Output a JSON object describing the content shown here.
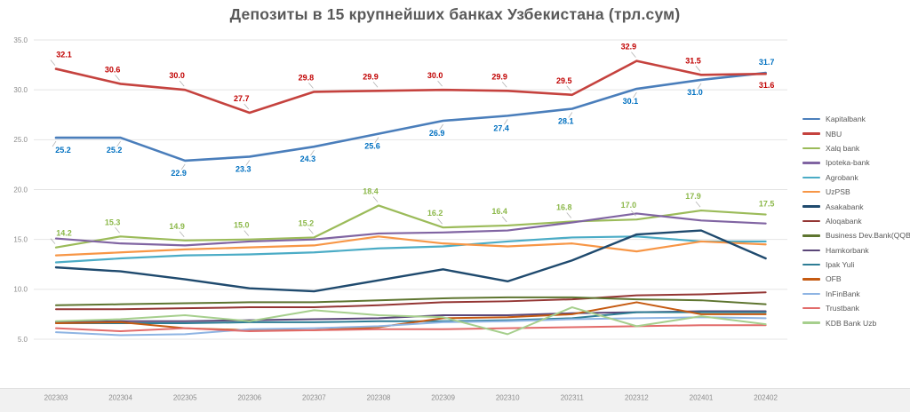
{
  "title": "Депозиты в 15 крупнейших банках Узбекистана (трл.сум)",
  "chart_data": {
    "type": "line",
    "x": [
      "202303",
      "202304",
      "202305",
      "202306",
      "202307",
      "202308",
      "202309",
      "202310",
      "202311",
      "202312",
      "202401",
      "202402"
    ],
    "ylim": [
      5,
      35
    ],
    "yticks": [
      5,
      10,
      15,
      20,
      25,
      30,
      35
    ],
    "grid": true,
    "legend_position": "right",
    "axis_text_color": "#8c8c8c",
    "grid_color": "#e4e4e4",
    "title_color": "#595959",
    "series": [
      {
        "name": "Kapitalbank",
        "color": "#4a7ebb",
        "label_color": "#0070c0",
        "width": 2.6,
        "data_labels": "below",
        "last_label": "above",
        "values": [
          25.2,
          25.2,
          22.9,
          23.3,
          24.3,
          25.6,
          26.9,
          27.4,
          28.1,
          30.1,
          31.0,
          31.7
        ]
      },
      {
        "name": "NBU",
        "color": "#c5423e",
        "label_color": "#c00000",
        "width": 2.6,
        "data_labels": "above",
        "last_label": "below",
        "values": [
          32.1,
          30.6,
          30.0,
          27.7,
          29.8,
          29.9,
          30.0,
          29.9,
          29.5,
          32.9,
          31.5,
          31.6
        ]
      },
      {
        "name": "Xalq bank",
        "color": "#9bbb59",
        "label_color": "#8cb84a",
        "width": 2.2,
        "data_labels": "above",
        "last_label": "above",
        "values": [
          14.2,
          15.3,
          14.9,
          15.0,
          15.2,
          18.4,
          16.2,
          16.4,
          16.8,
          17.0,
          17.9,
          17.5
        ]
      },
      {
        "name": "Ipoteka-bank",
        "color": "#8064a2",
        "width": 2.2,
        "data_labels": "none",
        "values": [
          15.1,
          14.6,
          14.4,
          14.8,
          15.0,
          15.6,
          15.7,
          15.9,
          16.7,
          17.6,
          16.9,
          16.6
        ]
      },
      {
        "name": "Agrobank",
        "color": "#4bacc6",
        "width": 2.2,
        "data_labels": "none",
        "values": [
          12.7,
          13.1,
          13.4,
          13.5,
          13.7,
          14.1,
          14.3,
          14.8,
          15.2,
          15.3,
          14.8,
          14.8
        ]
      },
      {
        "name": "UzPSB",
        "color": "#f79646",
        "width": 2.2,
        "data_labels": "none",
        "values": [
          13.4,
          13.7,
          14.0,
          14.2,
          14.4,
          15.3,
          14.6,
          14.3,
          14.6,
          13.8,
          14.8,
          14.5
        ]
      },
      {
        "name": "Asakabank",
        "color": "#1f4a6e",
        "width": 2.4,
        "data_labels": "none",
        "values": [
          12.2,
          11.8,
          11.0,
          10.1,
          9.8,
          10.9,
          12.0,
          10.8,
          12.9,
          15.5,
          15.9,
          13.1
        ]
      },
      {
        "name": "Aloqabank",
        "color": "#943634",
        "width": 2.0,
        "data_labels": "none",
        "values": [
          8.0,
          8.0,
          8.1,
          8.2,
          8.2,
          8.4,
          8.7,
          8.8,
          9.0,
          9.4,
          9.5,
          9.7
        ]
      },
      {
        "name": "Business Dev.Bank(QQB)",
        "color": "#5e7530",
        "width": 2.0,
        "data_labels": "none",
        "values": [
          8.4,
          8.5,
          8.6,
          8.7,
          8.7,
          8.9,
          9.1,
          9.2,
          9.2,
          9.0,
          8.9,
          8.5
        ]
      },
      {
        "name": "Hamkorbank",
        "color": "#5a4678",
        "width": 2.0,
        "data_labels": "none",
        "values": [
          6.7,
          6.8,
          6.8,
          6.9,
          7.0,
          7.1,
          7.4,
          7.4,
          7.6,
          7.7,
          7.8,
          7.8
        ]
      },
      {
        "name": "Ipak Yuli",
        "color": "#2e7d95",
        "width": 2.0,
        "data_labels": "none",
        "values": [
          6.6,
          6.6,
          6.6,
          6.7,
          6.7,
          6.8,
          6.8,
          6.9,
          7.1,
          7.7,
          7.7,
          7.7
        ]
      },
      {
        "name": "OFB",
        "color": "#c55a11",
        "width": 2.0,
        "data_labels": "none",
        "values": [
          6.6,
          6.7,
          6.1,
          5.9,
          5.9,
          6.2,
          7.1,
          7.2,
          7.5,
          8.7,
          7.5,
          7.5
        ]
      },
      {
        "name": "InFinBank",
        "color": "#8eb4e3",
        "width": 2.0,
        "data_labels": "none",
        "values": [
          5.7,
          5.4,
          5.5,
          6.0,
          6.1,
          6.3,
          6.7,
          6.8,
          7.0,
          7.1,
          7.2,
          7.1
        ]
      },
      {
        "name": "Trustbank",
        "color": "#e26b6a",
        "width": 2.0,
        "data_labels": "none",
        "values": [
          6.1,
          5.8,
          6.1,
          5.8,
          5.9,
          6.0,
          6.0,
          6.1,
          6.2,
          6.3,
          6.4,
          6.4
        ]
      },
      {
        "name": "KDB Bank Uzb",
        "color": "#a6cf8d",
        "width": 2.0,
        "data_labels": "none",
        "values": [
          6.8,
          7.0,
          7.4,
          6.8,
          7.9,
          7.4,
          7.2,
          5.5,
          8.2,
          6.3,
          7.3,
          6.5
        ]
      }
    ]
  }
}
